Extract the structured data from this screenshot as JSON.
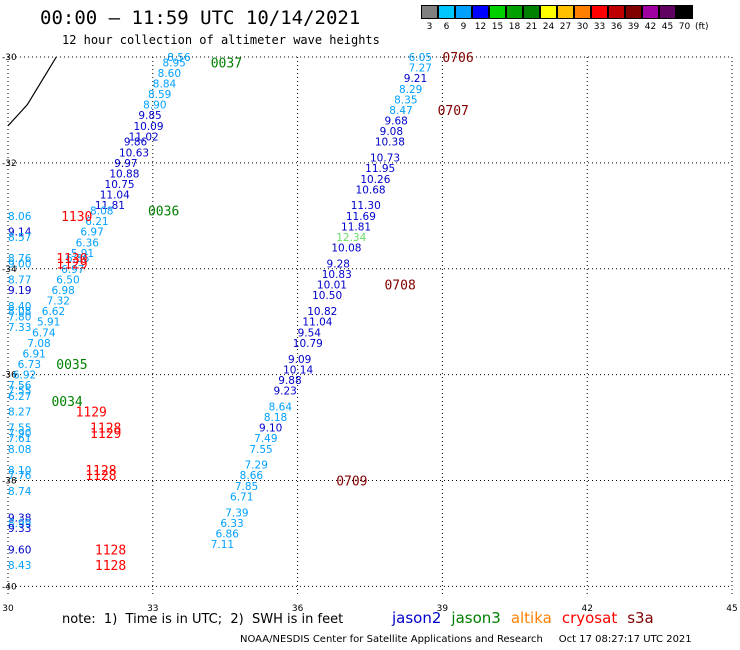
{
  "header": {
    "title": "00:00 – 11:59 UTC 10/14/2021",
    "subtitle": "12 hour collection of altimeter wave heights"
  },
  "colorbar": {
    "labels": [
      "3",
      "6",
      "9",
      "12",
      "15",
      "18",
      "21",
      "24",
      "27",
      "30",
      "33",
      "36",
      "39",
      "42",
      "45",
      "70"
    ],
    "colors": [
      "#808080",
      "#00c8ff",
      "#00a0ff",
      "#0000ff",
      "#00d000",
      "#00a000",
      "#008000",
      "#ffff00",
      "#ffc000",
      "#ff8000",
      "#ff0000",
      "#c00000",
      "#800000",
      "#a000a0",
      "#600060",
      "#000000"
    ],
    "unit": "(ft)"
  },
  "footer": {
    "note": "note:  1)  Time is in UTC;  2)  SWH is in feet",
    "credit": "NOAA/NESDIS Center for Satellite Applications and Research     Oct 17 08:27:17 UTC 2021"
  },
  "legend": [
    {
      "name": "jason2",
      "color": "#0000cc"
    },
    {
      "name": "jason3",
      "color": "#008000"
    },
    {
      "name": "altika",
      "color": "#ff8000"
    },
    {
      "name": "cryosat",
      "color": "#ff0000"
    },
    {
      "name": "s3a",
      "color": "#800000"
    }
  ],
  "chart_data": {
    "type": "scatter",
    "xlim": [
      30,
      45
    ],
    "ylim": [
      -40.2,
      -30
    ],
    "x_ticks": [
      "30",
      "33",
      "36",
      "39",
      "42",
      "45"
    ],
    "y_ticks": [
      "-30",
      "-32",
      "-34",
      "-36",
      "-38",
      "-40"
    ],
    "grid": true,
    "points": [
      {
        "x": 38.3,
        "y": -30.0,
        "label": "6.05",
        "color": "#00a0ff"
      },
      {
        "x": 38.3,
        "y": -30.2,
        "label": "7.27",
        "color": "#00a0ff"
      },
      {
        "x": 38.2,
        "y": -30.4,
        "label": "9.21",
        "color": "#0000cc"
      },
      {
        "x": 38.1,
        "y": -30.6,
        "label": "8.29",
        "color": "#00a0ff"
      },
      {
        "x": 38.0,
        "y": -30.8,
        "label": "8.35",
        "color": "#00a0ff"
      },
      {
        "x": 37.9,
        "y": -31.0,
        "label": "8.47",
        "color": "#00a0ff"
      },
      {
        "x": 37.8,
        "y": -31.2,
        "label": "9.68",
        "color": "#0000cc"
      },
      {
        "x": 37.7,
        "y": -31.4,
        "label": "9.08",
        "color": "#0000cc"
      },
      {
        "x": 37.6,
        "y": -31.6,
        "label": "10.38",
        "color": "#0000cc"
      },
      {
        "x": 37.5,
        "y": -31.9,
        "label": "10.73",
        "color": "#0000cc"
      },
      {
        "x": 37.4,
        "y": -32.1,
        "label": "11.95",
        "color": "#0000cc"
      },
      {
        "x": 37.3,
        "y": -32.3,
        "label": "10.26",
        "color": "#0000cc"
      },
      {
        "x": 37.2,
        "y": -32.5,
        "label": "10.68",
        "color": "#0000cc"
      },
      {
        "x": 37.1,
        "y": -32.8,
        "label": "11.30",
        "color": "#0000cc"
      },
      {
        "x": 37.0,
        "y": -33.0,
        "label": "11.69",
        "color": "#0000cc"
      },
      {
        "x": 36.9,
        "y": -33.2,
        "label": "11.81",
        "color": "#0000cc"
      },
      {
        "x": 36.8,
        "y": -33.4,
        "label": "12.34",
        "color": "#66dd66"
      },
      {
        "x": 36.7,
        "y": -33.6,
        "label": "10.08",
        "color": "#0000cc"
      },
      {
        "x": 36.6,
        "y": -33.9,
        "label": "9.28",
        "color": "#0000cc"
      },
      {
        "x": 36.5,
        "y": -34.1,
        "label": "10.83",
        "color": "#0000cc"
      },
      {
        "x": 36.4,
        "y": -34.3,
        "label": "10.01",
        "color": "#0000cc"
      },
      {
        "x": 36.3,
        "y": -34.5,
        "label": "10.50",
        "color": "#0000cc"
      },
      {
        "x": 36.2,
        "y": -34.8,
        "label": "10.82",
        "color": "#0000cc"
      },
      {
        "x": 36.1,
        "y": -35.0,
        "label": "11.04",
        "color": "#0000cc"
      },
      {
        "x": 36.0,
        "y": -35.2,
        "label": "9.54",
        "color": "#0000cc"
      },
      {
        "x": 35.9,
        "y": -35.4,
        "label": "10.79",
        "color": "#0000cc"
      },
      {
        "x": 35.8,
        "y": -35.7,
        "label": "9.09",
        "color": "#0000cc"
      },
      {
        "x": 35.7,
        "y": -35.9,
        "label": "10.14",
        "color": "#0000cc"
      },
      {
        "x": 35.6,
        "y": -36.1,
        "label": "9.88",
        "color": "#0000cc"
      },
      {
        "x": 35.5,
        "y": -36.3,
        "label": "9.23",
        "color": "#0000cc"
      },
      {
        "x": 35.4,
        "y": -36.6,
        "label": "8.64",
        "color": "#00a0ff"
      },
      {
        "x": 35.3,
        "y": -36.8,
        "label": "8.18",
        "color": "#00a0ff"
      },
      {
        "x": 35.2,
        "y": -37.0,
        "label": "9.10",
        "color": "#0000cc"
      },
      {
        "x": 35.1,
        "y": -37.2,
        "label": "7.49",
        "color": "#00a0ff"
      },
      {
        "x": 35.0,
        "y": -37.4,
        "label": "7.55",
        "color": "#00a0ff"
      },
      {
        "x": 34.9,
        "y": -37.7,
        "label": "7.29",
        "color": "#00a0ff"
      },
      {
        "x": 34.8,
        "y": -37.9,
        "label": "8.66",
        "color": "#00a0ff"
      },
      {
        "x": 34.7,
        "y": -38.1,
        "label": "7.85",
        "color": "#00a0ff"
      },
      {
        "x": 34.6,
        "y": -38.3,
        "label": "6.71",
        "color": "#00a0ff"
      },
      {
        "x": 34.5,
        "y": -38.6,
        "label": "7.39",
        "color": "#00a0ff"
      },
      {
        "x": 34.4,
        "y": -38.8,
        "label": "6.33",
        "color": "#00a0ff"
      },
      {
        "x": 34.3,
        "y": -39.0,
        "label": "6.86",
        "color": "#00a0ff"
      },
      {
        "x": 34.2,
        "y": -39.2,
        "label": "7.11",
        "color": "#00a0ff"
      },
      {
        "x": 33.3,
        "y": -30.0,
        "label": "8.56",
        "color": "#00a0ff"
      },
      {
        "x": 33.2,
        "y": -30.1,
        "label": "8.95",
        "color": "#00a0ff"
      },
      {
        "x": 33.1,
        "y": -30.3,
        "label": "8.60",
        "color": "#00a0ff"
      },
      {
        "x": 33.0,
        "y": -30.5,
        "label": "8.84",
        "color": "#00a0ff"
      },
      {
        "x": 32.9,
        "y": -30.7,
        "label": "8.59",
        "color": "#00a0ff"
      },
      {
        "x": 32.8,
        "y": -30.9,
        "label": "8.90",
        "color": "#00a0ff"
      },
      {
        "x": 32.7,
        "y": -31.1,
        "label": "9.85",
        "color": "#0000cc"
      },
      {
        "x": 32.6,
        "y": -31.3,
        "label": "10.09",
        "color": "#0000cc"
      },
      {
        "x": 32.5,
        "y": -31.5,
        "label": "11.02",
        "color": "#0000cc"
      },
      {
        "x": 32.4,
        "y": -31.6,
        "label": "9.86",
        "color": "#0000cc"
      },
      {
        "x": 32.3,
        "y": -31.8,
        "label": "10.63",
        "color": "#0000cc"
      },
      {
        "x": 32.2,
        "y": -32.0,
        "label": "9.97",
        "color": "#0000cc"
      },
      {
        "x": 32.1,
        "y": -32.2,
        "label": "10.88",
        "color": "#0000cc"
      },
      {
        "x": 32.0,
        "y": -32.4,
        "label": "10.75",
        "color": "#0000cc"
      },
      {
        "x": 31.9,
        "y": -32.6,
        "label": "11.04",
        "color": "#0000cc"
      },
      {
        "x": 31.8,
        "y": -32.8,
        "label": "11.81",
        "color": "#0000cc"
      },
      {
        "x": 31.7,
        "y": -32.9,
        "label": "8.08",
        "color": "#00a0ff"
      },
      {
        "x": 31.6,
        "y": -33.1,
        "label": "6.21",
        "color": "#00a0ff"
      },
      {
        "x": 31.5,
        "y": -33.3,
        "label": "6.97",
        "color": "#00a0ff"
      },
      {
        "x": 31.4,
        "y": -33.5,
        "label": "6.36",
        "color": "#00a0ff"
      },
      {
        "x": 31.3,
        "y": -33.7,
        "label": "5.91",
        "color": "#00a0ff"
      },
      {
        "x": 31.2,
        "y": -33.8,
        "label": "6.36",
        "color": "#00a0ff"
      },
      {
        "x": 31.1,
        "y": -34.0,
        "label": "6.97",
        "color": "#00a0ff"
      },
      {
        "x": 31.0,
        "y": -34.2,
        "label": "6.50",
        "color": "#00a0ff"
      },
      {
        "x": 30.9,
        "y": -34.4,
        "label": "6.98",
        "color": "#00a0ff"
      },
      {
        "x": 30.8,
        "y": -34.6,
        "label": "7.32",
        "color": "#00a0ff"
      },
      {
        "x": 30.7,
        "y": -34.8,
        "label": "6.62",
        "color": "#00a0ff"
      },
      {
        "x": 30.6,
        "y": -35.0,
        "label": "5.91",
        "color": "#00a0ff"
      },
      {
        "x": 30.5,
        "y": -35.2,
        "label": "6.74",
        "color": "#00a0ff"
      },
      {
        "x": 30.4,
        "y": -35.4,
        "label": "7.08",
        "color": "#00a0ff"
      },
      {
        "x": 30.3,
        "y": -35.6,
        "label": "6.91",
        "color": "#00a0ff"
      },
      {
        "x": 30.2,
        "y": -35.8,
        "label": "6.73",
        "color": "#00a0ff"
      },
      {
        "x": 30.1,
        "y": -36.0,
        "label": "6.92",
        "color": "#00a0ff"
      },
      {
        "x": 30.0,
        "y": -33.0,
        "label": "8.06",
        "color": "#00a0ff"
      },
      {
        "x": 30.0,
        "y": -33.3,
        "label": "9.14",
        "color": "#0000cc"
      },
      {
        "x": 30.0,
        "y": -33.4,
        "label": "8.57",
        "color": "#00a0ff"
      },
      {
        "x": 30.0,
        "y": -33.8,
        "label": "8.76",
        "color": "#00a0ff"
      },
      {
        "x": 30.0,
        "y": -33.9,
        "label": "9.00",
        "color": "#00a0ff"
      },
      {
        "x": 30.0,
        "y": -34.2,
        "label": "8.77",
        "color": "#00a0ff"
      },
      {
        "x": 30.0,
        "y": -34.4,
        "label": "9.19",
        "color": "#0000cc"
      },
      {
        "x": 30.0,
        "y": -34.7,
        "label": "8.40",
        "color": "#00a0ff"
      },
      {
        "x": 30.0,
        "y": -34.8,
        "label": "8.08",
        "color": "#00a0ff"
      },
      {
        "x": 30.0,
        "y": -34.9,
        "label": "7.80",
        "color": "#00a0ff"
      },
      {
        "x": 30.0,
        "y": -35.1,
        "label": "7.33",
        "color": "#00a0ff"
      },
      {
        "x": 30.0,
        "y": -36.2,
        "label": "7.56",
        "color": "#00a0ff"
      },
      {
        "x": 30.0,
        "y": -36.3,
        "label": "7.55",
        "color": "#00a0ff"
      },
      {
        "x": 30.0,
        "y": -36.4,
        "label": "6.27",
        "color": "#00a0ff"
      },
      {
        "x": 30.0,
        "y": -36.7,
        "label": "8.27",
        "color": "#00a0ff"
      },
      {
        "x": 30.0,
        "y": -37.0,
        "label": "7.55",
        "color": "#00a0ff"
      },
      {
        "x": 30.0,
        "y": -37.1,
        "label": "7.90",
        "color": "#00a0ff"
      },
      {
        "x": 30.0,
        "y": -37.2,
        "label": "7.61",
        "color": "#00a0ff"
      },
      {
        "x": 30.0,
        "y": -37.4,
        "label": "8.08",
        "color": "#00a0ff"
      },
      {
        "x": 30.0,
        "y": -37.8,
        "label": "8.10",
        "color": "#00a0ff"
      },
      {
        "x": 30.0,
        "y": -37.9,
        "label": "7.76",
        "color": "#00a0ff"
      },
      {
        "x": 30.0,
        "y": -38.2,
        "label": "8.74",
        "color": "#00a0ff"
      },
      {
        "x": 30.0,
        "y": -38.7,
        "label": "9.38",
        "color": "#0000cc"
      },
      {
        "x": 30.0,
        "y": -38.8,
        "label": "8.99",
        "color": "#00a0ff"
      },
      {
        "x": 30.0,
        "y": -38.9,
        "label": "9.33",
        "color": "#0000cc"
      },
      {
        "x": 30.0,
        "y": -39.3,
        "label": "9.60",
        "color": "#0000cc"
      },
      {
        "x": 30.0,
        "y": -39.6,
        "label": "8.43",
        "color": "#00a0ff"
      }
    ],
    "passes": [
      {
        "x": 39.0,
        "y": -30.0,
        "label": "0706",
        "color": "#800000"
      },
      {
        "x": 38.9,
        "y": -31.0,
        "label": "0707",
        "color": "#800000"
      },
      {
        "x": 37.8,
        "y": -34.3,
        "label": "0708",
        "color": "#800000"
      },
      {
        "x": 36.8,
        "y": -38.0,
        "label": "0709",
        "color": "#800000"
      },
      {
        "x": 34.2,
        "y": -30.1,
        "label": "0037",
        "color": "#008000"
      },
      {
        "x": 32.9,
        "y": -32.9,
        "label": "0036",
        "color": "#008000"
      },
      {
        "x": 31.0,
        "y": -35.8,
        "label": "0035",
        "color": "#008000"
      },
      {
        "x": 30.9,
        "y": -36.5,
        "label": "0034",
        "color": "#008000"
      },
      {
        "x": 31.1,
        "y": -33.0,
        "label": "1130",
        "color": "#ff0000"
      },
      {
        "x": 31.0,
        "y": -33.8,
        "label": "1130",
        "color": "#ff0000"
      },
      {
        "x": 31.0,
        "y": -33.9,
        "label": "1129",
        "color": "#ff0000"
      },
      {
        "x": 31.4,
        "y": -36.7,
        "label": "1129",
        "color": "#ff0000"
      },
      {
        "x": 31.7,
        "y": -37.0,
        "label": "1128",
        "color": "#ff0000"
      },
      {
        "x": 31.7,
        "y": -37.1,
        "label": "1129",
        "color": "#ff0000"
      },
      {
        "x": 31.6,
        "y": -37.8,
        "label": "1128",
        "color": "#ff0000"
      },
      {
        "x": 31.6,
        "y": -37.9,
        "label": "1128",
        "color": "#ff0000"
      },
      {
        "x": 31.8,
        "y": -39.3,
        "label": "1128",
        "color": "#ff0000"
      },
      {
        "x": 31.8,
        "y": -39.6,
        "label": "1128",
        "color": "#ff0000"
      }
    ],
    "coast": [
      [
        31.0,
        -30.0
      ],
      [
        30.8,
        -30.3
      ],
      [
        30.6,
        -30.6
      ],
      [
        30.4,
        -30.9
      ],
      [
        30.2,
        -31.1
      ],
      [
        30.0,
        -31.3
      ]
    ]
  }
}
